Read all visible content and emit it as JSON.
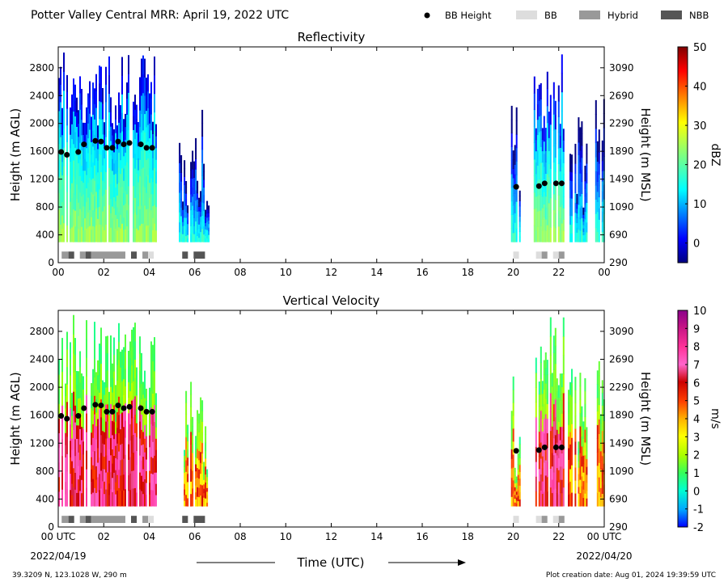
{
  "header": {
    "title": "Potter Valley Central MRR:  April 19, 2022 UTC",
    "legend": [
      {
        "label": "BB Height",
        "kind": "dot",
        "color": "#000000"
      },
      {
        "label": "BB",
        "kind": "patch",
        "color": "#dddddd"
      },
      {
        "label": "Hybrid",
        "kind": "patch",
        "color": "#999999"
      },
      {
        "label": "NBB",
        "kind": "patch",
        "color": "#555555"
      }
    ]
  },
  "footer": {
    "coords": "39.3209 N, 123.1028 W, 290 m",
    "created": "Plot creation date: Aug 01, 2024 19:39:59 UTC",
    "time_label": "Time (UTC)",
    "date_start": "2022/04/19",
    "date_end": "2022/04/20"
  },
  "chart_data": [
    {
      "type": "heatmap",
      "title": "Reflectivity",
      "ylabel": "Height (m AGL)",
      "ylabel_right": "Height (m MSL)",
      "xlabel": "Time (UTC)",
      "xlim": [
        0,
        24
      ],
      "ylim": [
        0,
        3100
      ],
      "xticks": [
        "00",
        "02",
        "04",
        "06",
        "08",
        "10",
        "12",
        "14",
        "16",
        "18",
        "20",
        "22",
        "00"
      ],
      "yticks_left": [
        0,
        400,
        800,
        1200,
        1600,
        2000,
        2400,
        2800
      ],
      "yticks_right": [
        290,
        690,
        1090,
        1490,
        1890,
        2290,
        2690,
        3090
      ],
      "colorbar": {
        "label": "dBZ",
        "min": -5,
        "max": 50,
        "ticks": [
          0,
          10,
          20,
          30,
          40,
          50
        ],
        "colormap": "jet"
      },
      "echo_periods_hours": [
        [
          0.0,
          4.3
        ],
        [
          5.3,
          6.6
        ],
        [
          19.9,
          20.3
        ],
        [
          20.9,
          22.25
        ],
        [
          22.4,
          22.6
        ],
        [
          22.7,
          23.2
        ],
        [
          23.6,
          24.0
        ]
      ],
      "bb_height_points": [
        {
          "x": 0.13,
          "y": 1590
        },
        {
          "x": 0.38,
          "y": 1550
        },
        {
          "x": 0.88,
          "y": 1590
        },
        {
          "x": 1.13,
          "y": 1700
        },
        {
          "x": 1.63,
          "y": 1750
        },
        {
          "x": 1.88,
          "y": 1740
        },
        {
          "x": 2.13,
          "y": 1650
        },
        {
          "x": 2.38,
          "y": 1650
        },
        {
          "x": 2.63,
          "y": 1740
        },
        {
          "x": 2.88,
          "y": 1700
        },
        {
          "x": 3.13,
          "y": 1720
        },
        {
          "x": 3.63,
          "y": 1700
        },
        {
          "x": 3.88,
          "y": 1650
        },
        {
          "x": 4.13,
          "y": 1650
        },
        {
          "x": 20.13,
          "y": 1090
        },
        {
          "x": 21.13,
          "y": 1100
        },
        {
          "x": 21.38,
          "y": 1140
        },
        {
          "x": 21.88,
          "y": 1140
        },
        {
          "x": 22.13,
          "y": 1140
        }
      ],
      "bb_classification": [
        {
          "start": 0.15,
          "end": 0.45,
          "type": "Hybrid"
        },
        {
          "start": 0.45,
          "end": 0.7,
          "type": "NBB"
        },
        {
          "start": 0.95,
          "end": 1.2,
          "type": "Hybrid"
        },
        {
          "start": 1.2,
          "end": 1.45,
          "type": "NBB"
        },
        {
          "start": 1.45,
          "end": 2.95,
          "type": "Hybrid"
        },
        {
          "start": 3.2,
          "end": 3.45,
          "type": "NBB"
        },
        {
          "start": 3.7,
          "end": 3.95,
          "type": "Hybrid"
        },
        {
          "start": 3.95,
          "end": 4.2,
          "type": "BB"
        },
        {
          "start": 5.45,
          "end": 5.7,
          "type": "NBB"
        },
        {
          "start": 5.95,
          "end": 6.45,
          "type": "NBB"
        },
        {
          "start": 20.0,
          "end": 20.25,
          "type": "BB"
        },
        {
          "start": 21.0,
          "end": 21.25,
          "type": "BB"
        },
        {
          "start": 21.25,
          "end": 21.5,
          "type": "Hybrid"
        },
        {
          "start": 21.75,
          "end": 22.0,
          "type": "BB"
        },
        {
          "start": 22.0,
          "end": 22.25,
          "type": "Hybrid"
        }
      ]
    },
    {
      "type": "heatmap",
      "title": "Vertical Velocity",
      "ylabel": "Height (m AGL)",
      "ylabel_right": "Height (m MSL)",
      "xlabel": "Time (UTC)",
      "xlim": [
        0,
        24
      ],
      "ylim": [
        0,
        3100
      ],
      "xticks": [
        "00 UTC",
        "02",
        "04",
        "06",
        "08",
        "10",
        "12",
        "14",
        "16",
        "18",
        "20",
        "22",
        "00 UTC"
      ],
      "yticks_left": [
        0,
        400,
        800,
        1200,
        1600,
        2000,
        2400,
        2800
      ],
      "yticks_right": [
        290,
        690,
        1090,
        1490,
        1890,
        2290,
        2690,
        3090
      ],
      "colorbar": {
        "label": "m/s",
        "min": -2,
        "max": 10,
        "ticks": [
          -2,
          -1,
          0,
          1,
          2,
          3,
          4,
          5,
          6,
          7,
          8,
          9,
          10
        ],
        "colormap": "velocity"
      },
      "echo_periods_hours": [
        [
          0.0,
          4.3
        ],
        [
          5.3,
          6.6
        ],
        [
          19.9,
          20.3
        ],
        [
          20.9,
          22.25
        ],
        [
          22.4,
          22.6
        ],
        [
          22.7,
          23.2
        ],
        [
          23.6,
          24.0
        ]
      ],
      "bb_height_points": [
        {
          "x": 0.13,
          "y": 1590
        },
        {
          "x": 0.38,
          "y": 1550
        },
        {
          "x": 0.88,
          "y": 1590
        },
        {
          "x": 1.13,
          "y": 1700
        },
        {
          "x": 1.63,
          "y": 1750
        },
        {
          "x": 1.88,
          "y": 1740
        },
        {
          "x": 2.13,
          "y": 1650
        },
        {
          "x": 2.38,
          "y": 1650
        },
        {
          "x": 2.63,
          "y": 1740
        },
        {
          "x": 2.88,
          "y": 1700
        },
        {
          "x": 3.13,
          "y": 1720
        },
        {
          "x": 3.63,
          "y": 1700
        },
        {
          "x": 3.88,
          "y": 1650
        },
        {
          "x": 4.13,
          "y": 1650
        },
        {
          "x": 20.13,
          "y": 1090
        },
        {
          "x": 21.13,
          "y": 1100
        },
        {
          "x": 21.38,
          "y": 1140
        },
        {
          "x": 21.88,
          "y": 1140
        },
        {
          "x": 22.13,
          "y": 1140
        }
      ],
      "bb_classification": [
        {
          "start": 0.15,
          "end": 0.45,
          "type": "Hybrid"
        },
        {
          "start": 0.45,
          "end": 0.7,
          "type": "NBB"
        },
        {
          "start": 0.95,
          "end": 1.2,
          "type": "Hybrid"
        },
        {
          "start": 1.2,
          "end": 1.45,
          "type": "NBB"
        },
        {
          "start": 1.45,
          "end": 2.95,
          "type": "Hybrid"
        },
        {
          "start": 3.2,
          "end": 3.45,
          "type": "NBB"
        },
        {
          "start": 3.7,
          "end": 3.95,
          "type": "Hybrid"
        },
        {
          "start": 3.95,
          "end": 4.2,
          "type": "BB"
        },
        {
          "start": 5.45,
          "end": 5.7,
          "type": "NBB"
        },
        {
          "start": 5.95,
          "end": 6.45,
          "type": "NBB"
        },
        {
          "start": 20.0,
          "end": 20.25,
          "type": "BB"
        },
        {
          "start": 21.0,
          "end": 21.25,
          "type": "BB"
        },
        {
          "start": 21.25,
          "end": 21.5,
          "type": "Hybrid"
        },
        {
          "start": 21.75,
          "end": 22.0,
          "type": "BB"
        },
        {
          "start": 22.0,
          "end": 22.25,
          "type": "Hybrid"
        }
      ]
    }
  ]
}
